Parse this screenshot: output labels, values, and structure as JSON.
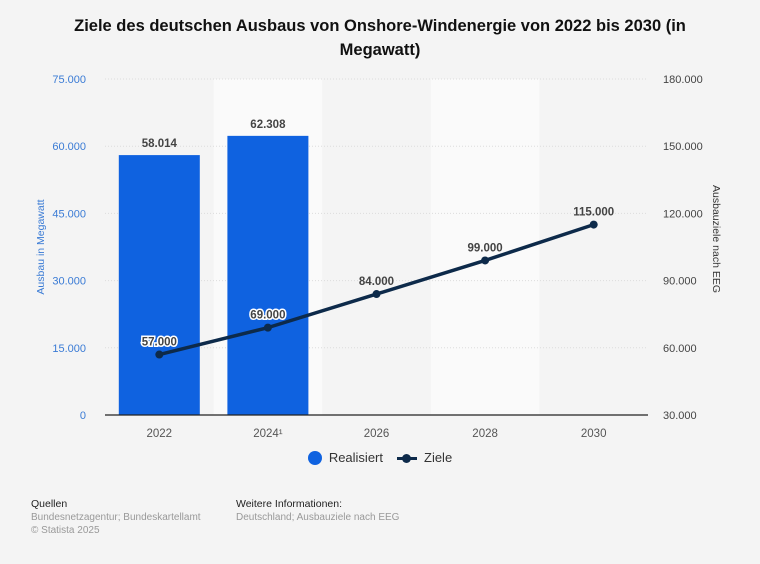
{
  "chart_data": {
    "type": "bar+line",
    "title": "Ziele des deutschen Ausbaus von Onshore-Windenergie von 2022 bis 2030 (in Megawatt)",
    "categories": [
      "2022",
      "2024¹",
      "2026",
      "2028",
      "2030"
    ],
    "series": [
      {
        "name": "Realisiert",
        "type": "bar",
        "axis": "left",
        "color": "#0f62e0",
        "values": [
          58014,
          62308,
          null,
          null,
          null
        ],
        "labels": [
          "58.014",
          "62.308",
          null,
          null,
          null
        ]
      },
      {
        "name": "Ziele",
        "type": "line",
        "axis": "right",
        "color": "#0d2a4a",
        "values": [
          57000,
          69000,
          84000,
          99000,
          115000
        ],
        "labels": [
          "57.000",
          "69.000",
          "84.000",
          "99.000",
          "115.000"
        ]
      }
    ],
    "y_left": {
      "label": "Ausbau in Megawatt",
      "range": [
        0,
        75000
      ],
      "ticks": [
        0,
        15000,
        30000,
        45000,
        60000,
        75000
      ],
      "tick_labels": [
        "0",
        "15.000",
        "30.000",
        "45.000",
        "60.000",
        "75.000"
      ],
      "color": "#3a7bd5"
    },
    "y_right": {
      "label": "Ausbauziele nach EEG",
      "range": [
        30000,
        180000
      ],
      "ticks": [
        30000,
        60000,
        90000,
        120000,
        150000,
        180000
      ],
      "tick_labels": [
        "30.000",
        "60.000",
        "90.000",
        "120.000",
        "150.000",
        "180.000"
      ]
    },
    "grid": true,
    "legend": "bottom-center"
  },
  "legend": {
    "items": [
      {
        "label": "Realisiert",
        "icon": "blue-dot-icon"
      },
      {
        "label": "Ziele",
        "icon": "line-marker-icon"
      }
    ]
  },
  "footer": {
    "sources_heading": "Quellen",
    "sources": "Bundesnetzagentur; Bundeskartellamt",
    "copyright": "© Statista 2025",
    "info_heading": "Weitere Informationen:",
    "info": "Deutschland; Ausbauziele nach EEG"
  }
}
